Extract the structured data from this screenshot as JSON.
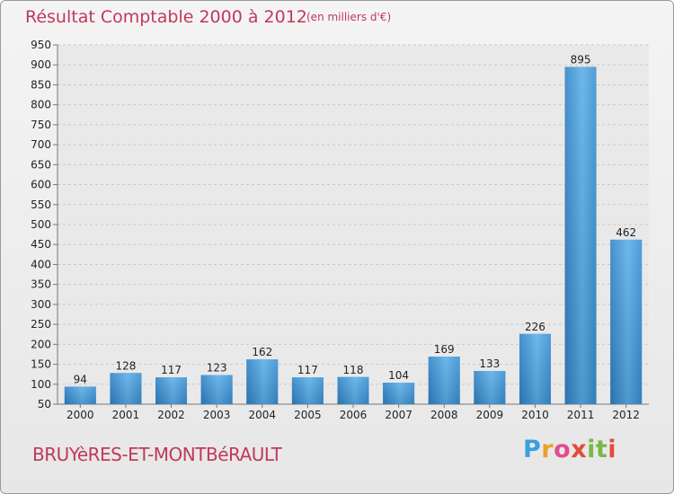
{
  "header": {
    "title": "Résultat Comptable 2000 à 2012",
    "subtitle": "(en milliers d'€)"
  },
  "footer": {
    "place": "BRUYèRES-ET-MONTBéRAULT",
    "logo_letters": [
      "P",
      "r",
      "o",
      "x",
      "i",
      "t",
      "i"
    ],
    "logo_colors": [
      "#3aa0dc",
      "#e9a12c",
      "#e34c8d",
      "#e34c3b",
      "#7ab648",
      "#7ab648",
      "#e34c3b"
    ]
  },
  "chart_data": {
    "type": "bar",
    "categories": [
      "2000",
      "2001",
      "2002",
      "2003",
      "2004",
      "2005",
      "2006",
      "2007",
      "2008",
      "2009",
      "2010",
      "2011",
      "2012"
    ],
    "values": [
      94,
      128,
      117,
      123,
      162,
      117,
      118,
      104,
      169,
      133,
      226,
      895,
      462
    ],
    "yticks": [
      50,
      100,
      150,
      200,
      250,
      300,
      350,
      400,
      450,
      500,
      550,
      600,
      650,
      700,
      750,
      800,
      850,
      900,
      950
    ],
    "ylim": [
      50,
      950
    ],
    "grid": true,
    "bar_color": "#3d95d8",
    "data_labels": true
  }
}
